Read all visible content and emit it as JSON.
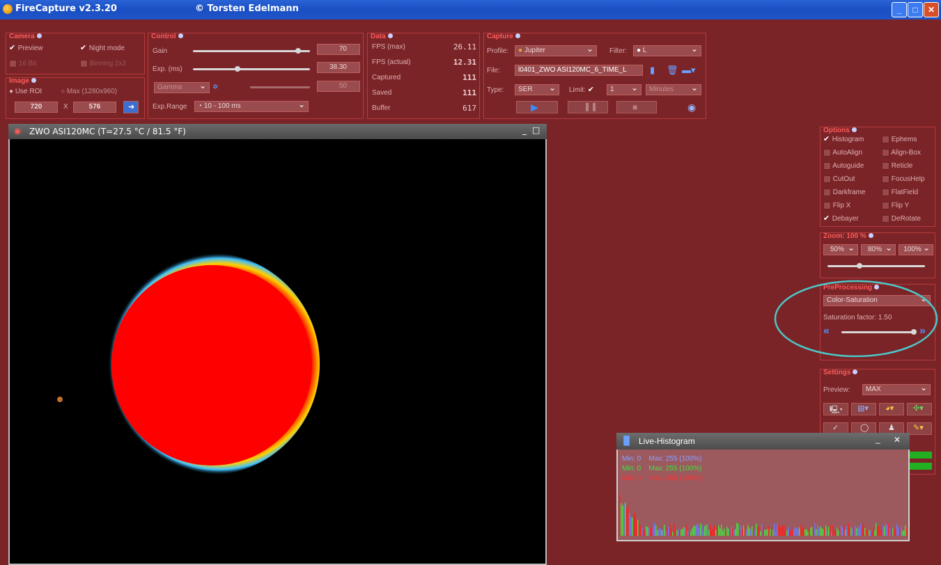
{
  "window": {
    "title": "FireCapture v2.3.20",
    "author": "© Torsten Edelmann",
    "controls": [
      "_",
      "□",
      "✕"
    ]
  },
  "camera": {
    "title": "Camera",
    "preview_label": "Preview",
    "preview_checked": true,
    "night_mode_label": "Night mode",
    "night_mode_checked": true,
    "bit16_label": "16 Bit",
    "binning_label": "Binning 2x2"
  },
  "image": {
    "title": "Image",
    "use_roi_label": "Use ROI",
    "max_label": "Max (1280x960)",
    "width": "720",
    "x_label": "X",
    "height": "576"
  },
  "control": {
    "title": "Control",
    "gain_label": "Gain",
    "gain_value": "70",
    "gain_level": 0.9,
    "exp_label": "Exp. (ms)",
    "exp_value": "38.30",
    "exp_level": 0.38,
    "gamma_label": "Gamma",
    "gamma_value": "50",
    "exprange_label": "Exp.Range",
    "exprange_value": "10 - 100 ms"
  },
  "data": {
    "title": "Data",
    "rows": [
      {
        "label": "FPS (max)",
        "value": "26.11"
      },
      {
        "label": "FPS (actual)",
        "value": "12.31"
      },
      {
        "label": "Captured",
        "value": "111"
      },
      {
        "label": "Saved",
        "value": "111"
      },
      {
        "label": "Buffer",
        "value": "617"
      }
    ]
  },
  "capture": {
    "title": "Capture",
    "profile_label": "Profile:",
    "profile_value": "Jupiter",
    "filter_label": "Filter:",
    "filter_value": "L",
    "file_label": "File:",
    "file_value": "l0401_ZWO ASI120MC_6_TIME_L",
    "type_label": "Type:",
    "type_value": "SER",
    "limit_label": "Limit:",
    "limit_value": "1",
    "limit_unit": "Minutes"
  },
  "viewer": {
    "title": "ZWO ASI120MC  (T=27.5 °C / 81.5 °F)"
  },
  "options": {
    "title": "Options",
    "items": [
      {
        "label": "Histogram",
        "checked": true
      },
      {
        "label": "Ephems",
        "checked": false
      },
      {
        "label": "AutoAlign",
        "checked": false
      },
      {
        "label": "Align-Box",
        "checked": false
      },
      {
        "label": "Autoguide",
        "checked": false
      },
      {
        "label": "Reticle",
        "checked": false
      },
      {
        "label": "CutOut",
        "checked": false
      },
      {
        "label": "FocusHelp",
        "checked": false
      },
      {
        "label": "Darkframe",
        "checked": false
      },
      {
        "label": "FlatField",
        "checked": false
      },
      {
        "label": "Flip X",
        "checked": false
      },
      {
        "label": "Flip Y",
        "checked": false
      },
      {
        "label": "Debayer",
        "checked": true
      },
      {
        "label": "DeRotate",
        "checked": false
      }
    ]
  },
  "zoom": {
    "title": "Zoom: 100 %",
    "buttons": [
      "50%",
      "80%",
      "100%"
    ],
    "level": 0.33
  },
  "preprocessing": {
    "title": "PreProcessing",
    "mode": "Color-Saturation",
    "factor_label": "Saturation factor: 1.50",
    "factor_level": 1.0
  },
  "settings": {
    "title": "Settings",
    "preview_label": "Preview:",
    "preview_value": "MAX"
  },
  "histogram": {
    "title": "Live-Histogram",
    "lines": [
      {
        "min": "Min: 0",
        "max": "Max: 255  (100%)",
        "color": "#8aa0ff"
      },
      {
        "min": "Min: 0",
        "max": "Max: 255  (100%)",
        "color": "#40e040"
      },
      {
        "min": "Min: 0",
        "max": "Max: 255  (100%)",
        "color": "#ff3030"
      }
    ]
  }
}
